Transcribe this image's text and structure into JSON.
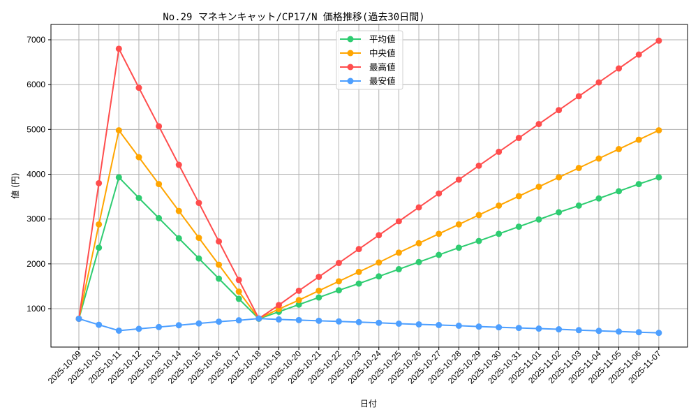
{
  "chart_data": {
    "type": "line",
    "title": "No.29 マネキンキャット/CP17/N 価格推移(過去30日間)",
    "xlabel": "日付",
    "ylabel": "値 (円)",
    "ylim": [
      130,
      7300
    ],
    "yticks": [
      1000,
      2000,
      3000,
      4000,
      5000,
      6000,
      7000
    ],
    "grid": true,
    "legend_position": "upper center",
    "categories": [
      "2025-10-09",
      "2025-10-10",
      "2025-10-11",
      "2025-10-12",
      "2025-10-13",
      "2025-10-14",
      "2025-10-15",
      "2025-10-16",
      "2025-10-17",
      "2025-10-18",
      "2025-10-19",
      "2025-10-20",
      "2025-10-21",
      "2025-10-22",
      "2025-10-23",
      "2025-10-24",
      "2025-10-25",
      "2025-10-26",
      "2025-10-27",
      "2025-10-28",
      "2025-10-29",
      "2025-10-30",
      "2025-10-31",
      "2025-11-01",
      "2025-11-02",
      "2025-11-03",
      "2025-11-04",
      "2025-11-05",
      "2025-11-06",
      "2025-11-07"
    ],
    "series": [
      {
        "name": "平均値",
        "color": "#2ecc71",
        "values": [
          775,
          2360,
          3930,
          3470,
          3020,
          2570,
          2120,
          1670,
          1220,
          775,
          930,
          1090,
          1250,
          1410,
          1560,
          1720,
          1880,
          2040,
          2200,
          2360,
          2510,
          2670,
          2830,
          2990,
          3150,
          3300,
          3460,
          3620,
          3780,
          3930
        ]
      },
      {
        "name": "中央値",
        "color": "#ffa500",
        "values": [
          775,
          2880,
          4980,
          4380,
          3780,
          3180,
          2580,
          1980,
          1380,
          780,
          990,
          1190,
          1400,
          1610,
          1820,
          2030,
          2250,
          2460,
          2670,
          2880,
          3090,
          3300,
          3510,
          3720,
          3930,
          4140,
          4350,
          4560,
          4770,
          4980
        ]
      },
      {
        "name": "最高値",
        "color": "#ff4d4d",
        "values": [
          775,
          3800,
          6800,
          5930,
          5070,
          4210,
          3360,
          2500,
          1640,
          780,
          1080,
          1400,
          1710,
          2020,
          2330,
          2640,
          2950,
          3260,
          3570,
          3880,
          4190,
          4500,
          4810,
          5120,
          5430,
          5740,
          6050,
          6360,
          6670,
          6980
        ]
      },
      {
        "name": "最安値",
        "color": "#4d9fff",
        "values": [
          775,
          640,
          510,
          550,
          590,
          630,
          670,
          710,
          740,
          780,
          760,
          745,
          730,
          715,
          700,
          685,
          665,
          650,
          635,
          620,
          600,
          585,
          570,
          555,
          540,
          520,
          505,
          490,
          475,
          460
        ]
      }
    ]
  }
}
